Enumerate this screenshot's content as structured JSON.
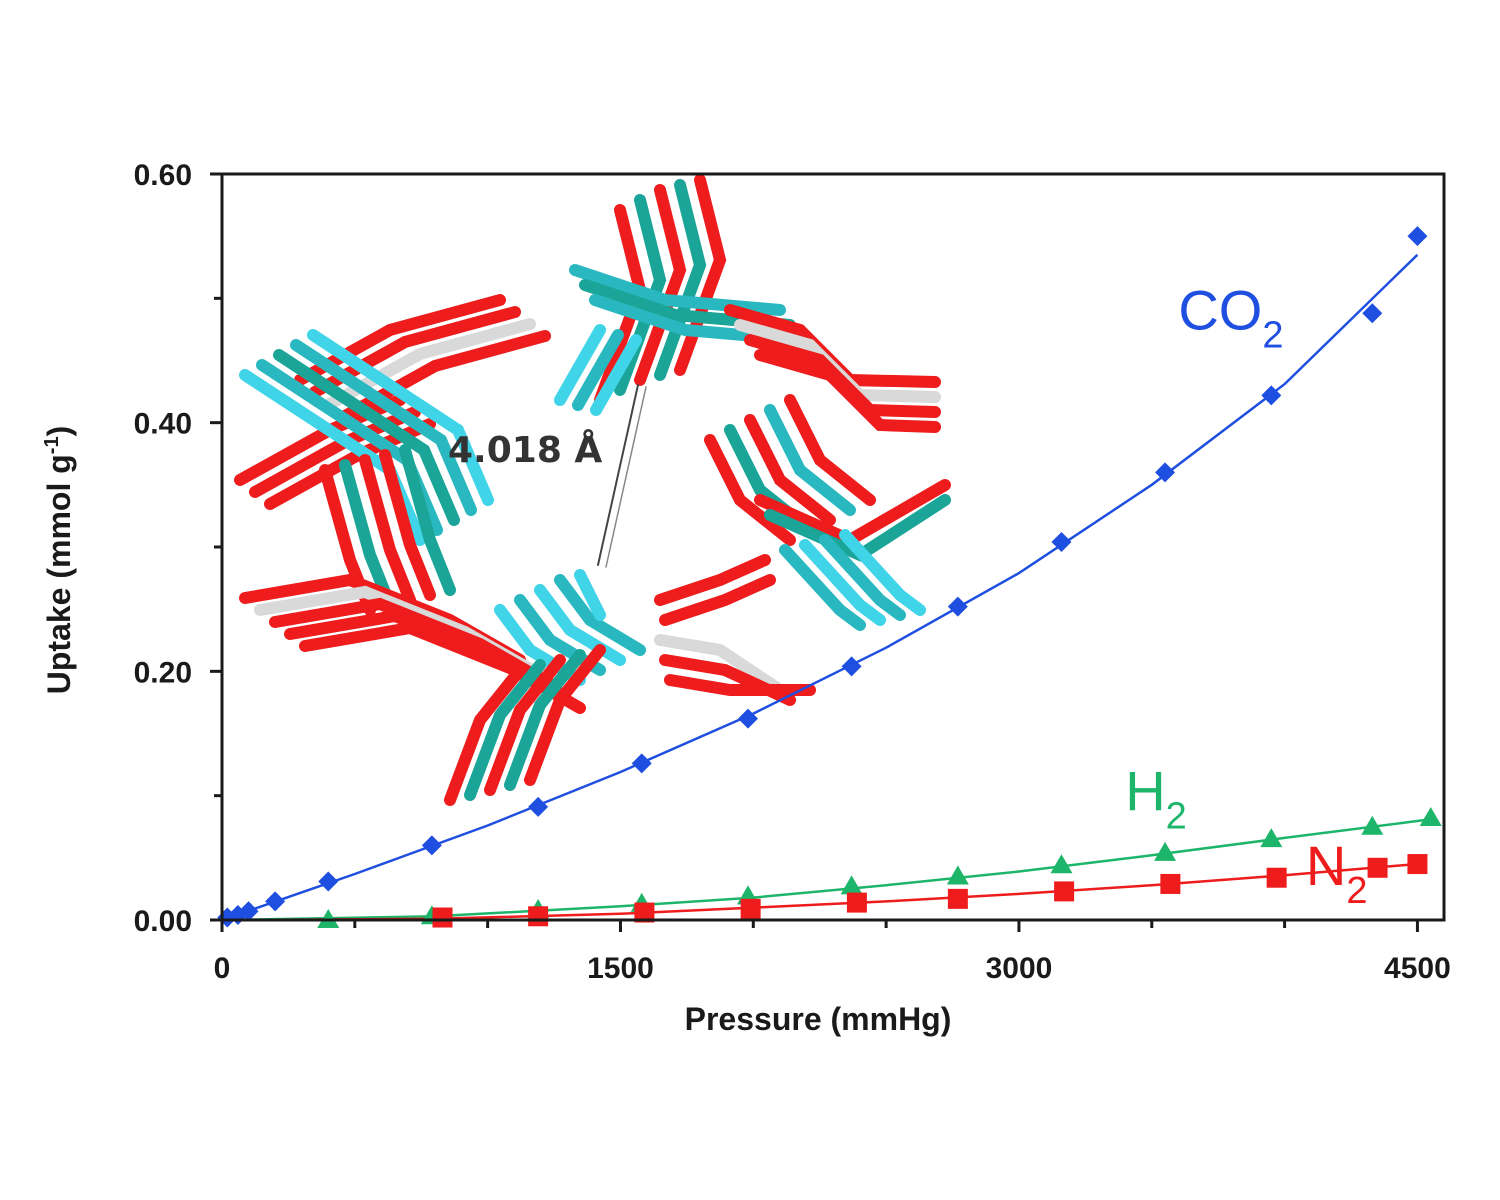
{
  "chart_data": {
    "type": "scatter",
    "xlabel": "Pressure (mmHg)",
    "ylabel_main": "Uptake (mmol g",
    "ylabel_sup": "-1",
    "ylabel_close": ")",
    "xlim": [
      0,
      4600
    ],
    "ylim": [
      0,
      0.6
    ],
    "x_ticks": [
      0,
      1500,
      3000,
      4500
    ],
    "x_tick_labels": [
      "0",
      "1500",
      "3000",
      "4500"
    ],
    "x_minor_step": 500,
    "y_ticks": [
      0,
      0.2,
      0.4,
      0.6
    ],
    "y_tick_labels": [
      "0.00",
      "0.20",
      "0.40",
      "0.60"
    ],
    "y_minor_step": 0.1,
    "grid": false,
    "series": [
      {
        "name_main": "CO",
        "name_sub": "2",
        "color": "#1f4fe0",
        "marker": "diamond",
        "label_pos": [
          3600,
          0.475
        ],
        "points": [
          [
            20,
            0.002
          ],
          [
            60,
            0.004
          ],
          [
            100,
            0.007
          ],
          [
            200,
            0.015
          ],
          [
            400,
            0.031
          ],
          [
            790,
            0.06
          ],
          [
            1190,
            0.091
          ],
          [
            1580,
            0.126
          ],
          [
            1980,
            0.162
          ],
          [
            2370,
            0.204
          ],
          [
            2770,
            0.252
          ],
          [
            3160,
            0.304
          ],
          [
            3550,
            0.36
          ],
          [
            3950,
            0.422
          ],
          [
            4330,
            0.488
          ],
          [
            4500,
            0.55
          ]
        ],
        "fit": [
          [
            0,
            0
          ],
          [
            500,
            0.037
          ],
          [
            1000,
            0.076
          ],
          [
            1500,
            0.119
          ],
          [
            2000,
            0.166
          ],
          [
            2500,
            0.219
          ],
          [
            3000,
            0.279
          ],
          [
            3500,
            0.35
          ],
          [
            4000,
            0.431
          ],
          [
            4500,
            0.535
          ]
        ]
      },
      {
        "name_main": "H",
        "name_sub": "2",
        "color": "#1db56a",
        "marker": "triangle",
        "label_pos": [
          3400,
          0.088
        ],
        "points": [
          [
            400,
            0.0
          ],
          [
            790,
            0.003
          ],
          [
            1190,
            0.008
          ],
          [
            1580,
            0.013
          ],
          [
            1980,
            0.019
          ],
          [
            2370,
            0.027
          ],
          [
            2770,
            0.035
          ],
          [
            3160,
            0.044
          ],
          [
            3550,
            0.054
          ],
          [
            3950,
            0.065
          ],
          [
            4330,
            0.075
          ],
          [
            4550,
            0.082
          ]
        ],
        "fit": [
          [
            0,
            0
          ],
          [
            800,
            0.003
          ],
          [
            1500,
            0.011
          ],
          [
            2000,
            0.018
          ],
          [
            2500,
            0.028
          ],
          [
            3000,
            0.039
          ],
          [
            3500,
            0.052
          ],
          [
            4000,
            0.066
          ],
          [
            4550,
            0.081
          ]
        ]
      },
      {
        "name_main": "N",
        "name_sub": "2",
        "color": "#ee1c1c",
        "marker": "square",
        "label_pos": [
          4080,
          0.028
        ],
        "points": [
          [
            830,
            0.002
          ],
          [
            1190,
            0.003
          ],
          [
            1590,
            0.006
          ],
          [
            1990,
            0.009
          ],
          [
            2390,
            0.014
          ],
          [
            2770,
            0.017
          ],
          [
            3170,
            0.023
          ],
          [
            3570,
            0.029
          ],
          [
            3970,
            0.034
          ],
          [
            4350,
            0.042
          ],
          [
            4500,
            0.045
          ]
        ],
        "fit": [
          [
            0,
            0
          ],
          [
            800,
            0.001
          ],
          [
            1500,
            0.005
          ],
          [
            2000,
            0.01
          ],
          [
            2500,
            0.015
          ],
          [
            3000,
            0.021
          ],
          [
            3500,
            0.028
          ],
          [
            4000,
            0.036
          ],
          [
            4500,
            0.045
          ]
        ]
      }
    ],
    "annotation": "4.018 Å"
  }
}
